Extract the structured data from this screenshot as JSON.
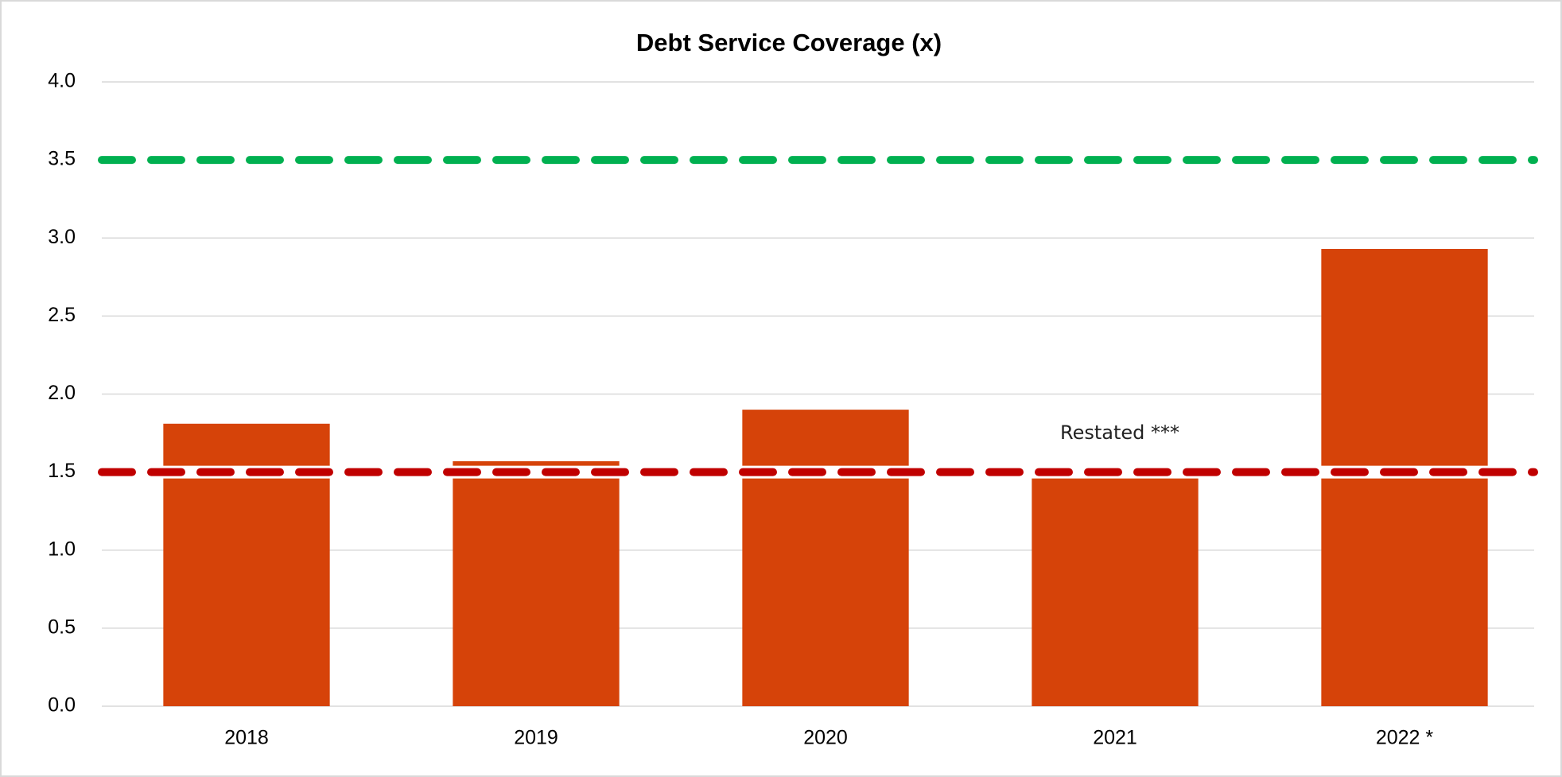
{
  "chart_data": {
    "type": "bar",
    "title": "Debt Service Coverage (x)",
    "categories": [
      "2018",
      "2019",
      "2020",
      "2021",
      "2022 *"
    ],
    "values": [
      1.81,
      1.57,
      1.9,
      1.47,
      2.93
    ],
    "color": "#d64309",
    "ylim": [
      0,
      4
    ],
    "yticks": [
      {
        "value": 0,
        "label": "0.0"
      },
      {
        "value": 0.5,
        "label": "0.5"
      },
      {
        "value": 1,
        "label": "1.0"
      },
      {
        "value": 1.5,
        "label": "1.5"
      },
      {
        "value": 2,
        "label": "2.0"
      },
      {
        "value": 2.5,
        "label": "2.5"
      },
      {
        "value": 3,
        "label": "3.0"
      },
      {
        "value": 3.5,
        "label": "3.5"
      },
      {
        "value": 4,
        "label": "4.0"
      }
    ],
    "grid": true,
    "reference_lines": [
      {
        "value": 3.5,
        "color": "#00b050"
      },
      {
        "value": 1.5,
        "color": "#c00000"
      }
    ],
    "annotations": [
      {
        "text": "Restated ***",
        "category": 3
      }
    ]
  }
}
